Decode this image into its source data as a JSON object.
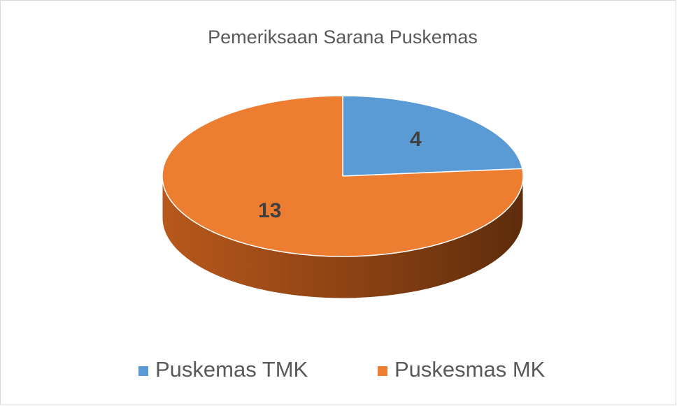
{
  "chart_data": {
    "type": "pie",
    "title": "Pemeriksaan Sarana Puskemas",
    "categories": [
      "Puskemas TMK",
      "Puskesmas MK"
    ],
    "values": [
      4,
      13
    ],
    "colors": [
      "#5b9bd5",
      "#ed7d31"
    ],
    "legend": "bottom"
  }
}
